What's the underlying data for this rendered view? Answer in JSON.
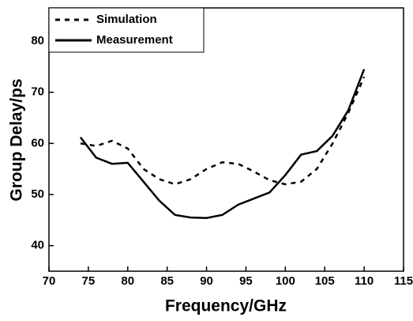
{
  "chart_data": {
    "type": "line",
    "x_label": "Frequency/GHz",
    "y_label": "Group Delay/ps",
    "x": [
      74,
      76,
      78,
      80,
      82,
      84,
      86,
      88,
      90,
      92,
      94,
      96,
      98,
      100,
      102,
      104,
      106,
      108,
      110
    ],
    "series": [
      {
        "name": "Simulation",
        "color": "#000000",
        "style": "dotted",
        "values": [
          60,
          59.5,
          60.5,
          59,
          55,
          53,
          52,
          53,
          55,
          56.3,
          56,
          54.5,
          52.8,
          52,
          52.5,
          55,
          60,
          66,
          73
        ]
      },
      {
        "name": "Measurement",
        "color": "#000000",
        "style": "solid",
        "values": [
          61.2,
          57.2,
          56,
          56.2,
          52.5,
          48.8,
          46,
          45.5,
          45.4,
          46,
          48,
          49.2,
          50.4,
          53.8,
          57.8,
          58.5,
          61.5,
          66.5,
          74.5
        ]
      }
    ],
    "xlim": [
      70,
      115
    ],
    "xticks": [
      70,
      75,
      80,
      85,
      90,
      95,
      100,
      105,
      110,
      115
    ],
    "ylim": [
      35,
      86.5
    ],
    "yticks": [
      40,
      50,
      60,
      70,
      80
    ],
    "legend": "upper left",
    "grid": false
  }
}
